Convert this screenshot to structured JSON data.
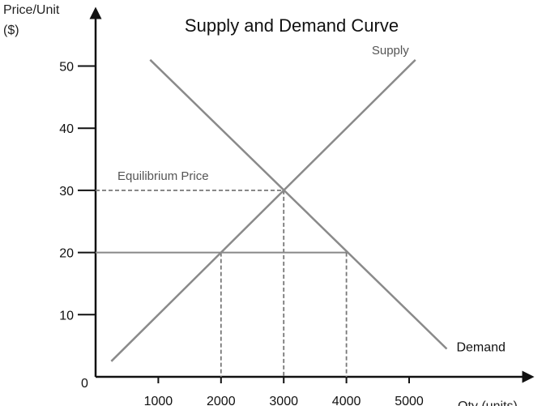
{
  "chart_data": {
    "type": "line",
    "title": "Supply and Demand Curve",
    "ylabel_line1": "Price/Unit",
    "ylabel_line2": "($)",
    "xlabel": "Qty (units)",
    "origin_label": "0",
    "xlim": [
      0,
      7200
    ],
    "ylim": [
      0,
      60
    ],
    "x_ticks": [
      1000,
      2000,
      3000,
      4000,
      5000
    ],
    "y_ticks": [
      10,
      20,
      30,
      40,
      50
    ],
    "series": [
      {
        "name": "Supply",
        "color": "#8a8a8a",
        "points": [
          [
            250,
            2.5
          ],
          [
            5100,
            51
          ]
        ]
      },
      {
        "name": "Demand",
        "color": "#8a8a8a",
        "points": [
          [
            870,
            51
          ],
          [
            5600,
            4.5
          ]
        ]
      }
    ],
    "annotations": {
      "equilibrium": {
        "label": "Equilibrium Price",
        "x": 3000,
        "y": 30
      },
      "price_floor": {
        "y": 20,
        "x_start": 0,
        "x_end": 4000,
        "supply_x": 2000,
        "demand_x": 4000
      }
    },
    "grid": false,
    "legend": "none"
  }
}
